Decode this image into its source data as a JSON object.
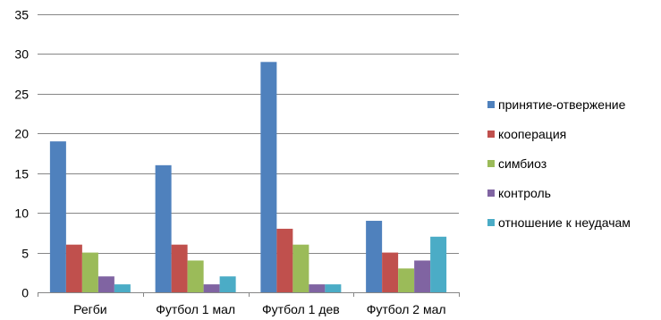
{
  "chart_data": {
    "type": "bar",
    "title": "",
    "xlabel": "",
    "ylabel": "",
    "ylim": [
      0,
      35
    ],
    "y_ticks": [
      0,
      5,
      10,
      15,
      20,
      25,
      30,
      35
    ],
    "grid": "horizontal",
    "legend_position": "right",
    "categories": [
      "Регби",
      "Футбол 1 мал",
      "Футбол 1 дев",
      "Футбол 2 мал"
    ],
    "series": [
      {
        "name": "принятие-отвержение",
        "color": "#4F81BD",
        "values": [
          19,
          16,
          29,
          9
        ]
      },
      {
        "name": "кооперация",
        "color": "#C0504D",
        "values": [
          6,
          6,
          8,
          5
        ]
      },
      {
        "name": "симбиоз",
        "color": "#9BBB59",
        "values": [
          5,
          4,
          6,
          3
        ]
      },
      {
        "name": "контроль",
        "color": "#8064A2",
        "values": [
          2,
          1,
          1,
          4
        ]
      },
      {
        "name": "отношение к неудачам",
        "color": "#4BACC6",
        "values": [
          1,
          2,
          1,
          7
        ]
      }
    ]
  }
}
